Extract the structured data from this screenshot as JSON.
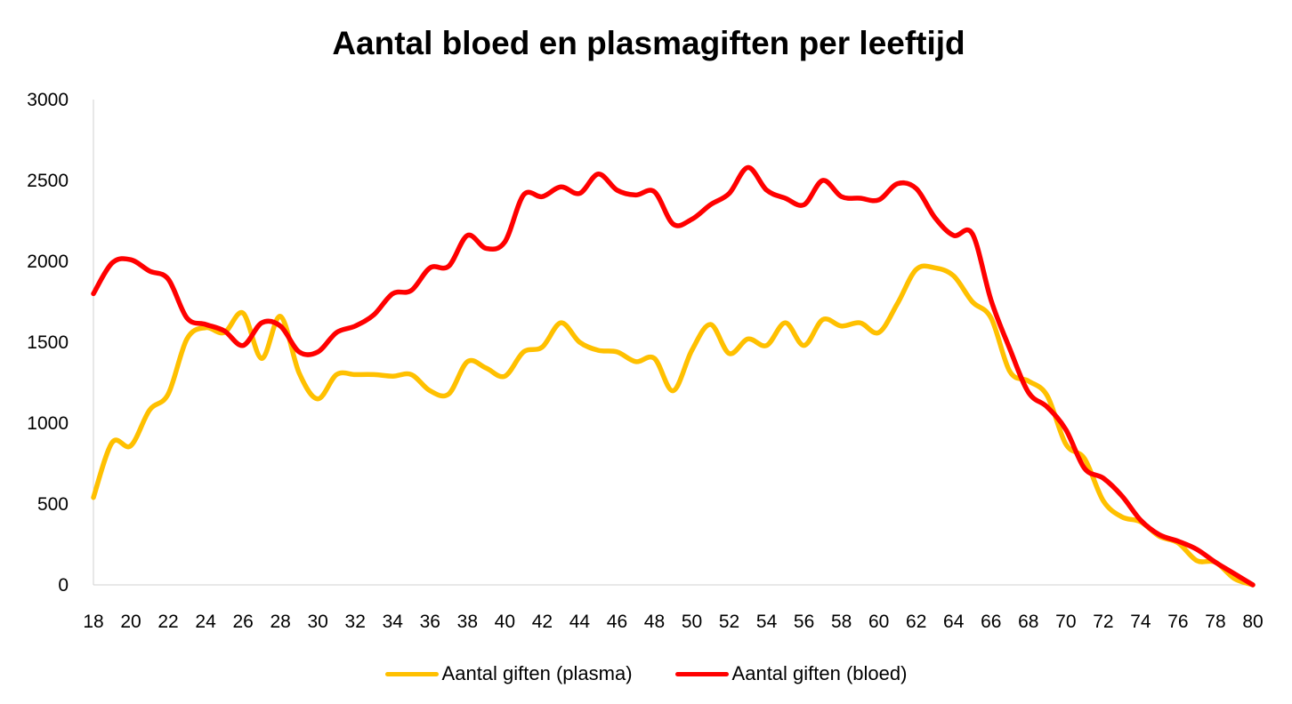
{
  "chart_data": {
    "type": "line",
    "title": "Aantal bloed en plasmagiften per leeftijd",
    "xlabel": "",
    "ylabel": "",
    "ylim": [
      0,
      3000
    ],
    "yticks": [
      0,
      500,
      1000,
      1500,
      2000,
      2500,
      3000
    ],
    "xticks": [
      18,
      20,
      22,
      24,
      26,
      28,
      30,
      32,
      34,
      36,
      38,
      40,
      42,
      44,
      46,
      48,
      50,
      52,
      54,
      56,
      58,
      60,
      62,
      64,
      66,
      68,
      70,
      72,
      74,
      76,
      78,
      80
    ],
    "x": [
      18,
      19,
      20,
      21,
      22,
      23,
      24,
      25,
      26,
      27,
      28,
      29,
      30,
      31,
      32,
      33,
      34,
      35,
      36,
      37,
      38,
      39,
      40,
      41,
      42,
      43,
      44,
      45,
      46,
      47,
      48,
      49,
      50,
      51,
      52,
      53,
      54,
      55,
      56,
      57,
      58,
      59,
      60,
      61,
      62,
      63,
      64,
      65,
      66,
      67,
      68,
      69,
      70,
      71,
      72,
      73,
      74,
      75,
      76,
      77,
      78,
      79,
      80
    ],
    "series": [
      {
        "name": "Aantal giften (plasma)",
        "color": "#FFC000",
        "values": [
          540,
          880,
          860,
          1080,
          1180,
          1520,
          1590,
          1560,
          1680,
          1400,
          1660,
          1310,
          1150,
          1300,
          1300,
          1300,
          1290,
          1300,
          1200,
          1180,
          1380,
          1340,
          1290,
          1440,
          1470,
          1620,
          1500,
          1450,
          1440,
          1380,
          1400,
          1200,
          1450,
          1610,
          1430,
          1520,
          1480,
          1620,
          1480,
          1640,
          1600,
          1620,
          1560,
          1740,
          1950,
          1960,
          1910,
          1750,
          1650,
          1320,
          1260,
          1170,
          870,
          780,
          520,
          420,
          390,
          300,
          260,
          150,
          140,
          40,
          0
        ]
      },
      {
        "name": "Aantal giften (bloed)",
        "color": "#FF0000",
        "values": [
          1800,
          1990,
          2010,
          1940,
          1890,
          1650,
          1610,
          1570,
          1480,
          1620,
          1600,
          1440,
          1440,
          1560,
          1600,
          1670,
          1800,
          1820,
          1960,
          1970,
          2160,
          2080,
          2120,
          2410,
          2400,
          2460,
          2420,
          2540,
          2440,
          2410,
          2430,
          2230,
          2260,
          2350,
          2420,
          2580,
          2440,
          2390,
          2350,
          2500,
          2400,
          2390,
          2380,
          2480,
          2450,
          2270,
          2160,
          2170,
          1760,
          1460,
          1190,
          1100,
          960,
          720,
          660,
          550,
          400,
          310,
          270,
          220,
          140,
          70,
          0
        ]
      }
    ],
    "legend": "bottom"
  }
}
